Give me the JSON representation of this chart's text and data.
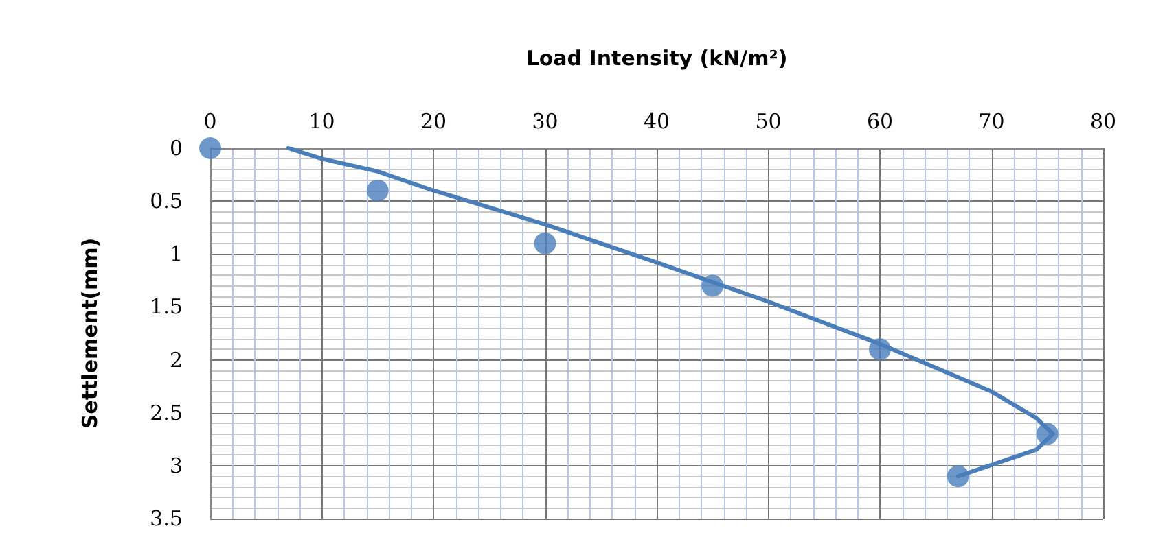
{
  "chart_data": {
    "type": "scatter",
    "xlabel": "Load Intensity (kN/m²)",
    "ylabel": "Settlement(mm)",
    "xlim": [
      0,
      80
    ],
    "xticks": [
      0,
      {
        "value": 2,
        "label": null
      },
      {
        "value": 4,
        "label": null
      },
      {
        "value": 6,
        "label": null
      },
      {
        "value": 8,
        "label": null
      },
      10,
      {
        "value": 12,
        "label": null
      },
      {
        "value": 14,
        "label": null
      },
      {
        "value": 16,
        "label": null
      },
      {
        "value": 18,
        "label": null
      },
      20,
      {
        "value": 22,
        "label": null
      },
      {
        "value": 24,
        "label": null
      },
      {
        "value": 26,
        "label": null
      },
      {
        "value": 28,
        "label": null
      },
      30,
      {
        "value": 32,
        "label": null
      },
      {
        "value": 34,
        "label": null
      },
      {
        "value": 36,
        "label": null
      },
      {
        "value": 38,
        "label": null
      },
      40,
      {
        "value": 42,
        "label": null
      },
      {
        "value": 44,
        "label": null
      },
      {
        "value": 46,
        "label": null
      },
      {
        "value": 48,
        "label": null
      },
      50,
      {
        "value": 52,
        "label": null
      },
      {
        "value": 54,
        "label": null
      },
      {
        "value": 56,
        "label": null
      },
      {
        "value": 58,
        "label": null
      },
      60,
      {
        "value": 62,
        "label": null
      },
      {
        "value": 64,
        "label": null
      },
      {
        "value": 66,
        "label": null
      },
      {
        "value": 68,
        "label": null
      },
      70,
      {
        "value": 72,
        "label": null
      },
      {
        "value": 74,
        "label": null
      },
      {
        "value": 76,
        "label": null
      },
      {
        "value": 78,
        "label": null
      },
      80
    ],
    "ylim": [
      3.5,
      0
    ],
    "yticks": [
      0,
      {
        "value": 0.1,
        "label": null
      },
      {
        "value": 0.2,
        "label": null
      },
      {
        "value": 0.3,
        "label": null
      },
      {
        "value": 0.4,
        "label": null
      },
      0.5,
      {
        "value": 0.6,
        "label": null
      },
      {
        "value": 0.7,
        "label": null
      },
      {
        "value": 0.8,
        "label": null
      },
      {
        "value": 0.9,
        "label": null
      },
      1,
      {
        "value": 1.1,
        "label": null
      },
      {
        "value": 1.2,
        "label": null
      },
      {
        "value": 1.3,
        "label": null
      },
      {
        "value": 1.4,
        "label": null
      },
      1.5,
      {
        "value": 1.6,
        "label": null
      },
      {
        "value": 1.7,
        "label": null
      },
      {
        "value": 1.8,
        "label": null
      },
      {
        "value": 1.9,
        "label": null
      },
      2,
      {
        "value": 2.1,
        "label": null
      },
      {
        "value": 2.2,
        "label": null
      },
      {
        "value": 2.3,
        "label": null
      },
      {
        "value": 2.4,
        "label": null
      },
      2.5,
      {
        "value": 2.6,
        "label": null
      },
      {
        "value": 2.7,
        "label": null
      },
      {
        "value": 2.8,
        "label": null
      },
      {
        "value": 2.9,
        "label": null
      },
      3,
      {
        "value": 3.1,
        "label": null
      },
      {
        "value": 3.2,
        "label": null
      },
      {
        "value": 3.3,
        "label": null
      },
      {
        "value": 3.4,
        "label": null
      },
      3.5
    ],
    "grid": true,
    "series": [
      {
        "color": "#4a7ebb",
        "marker": "circle",
        "x": [
          0,
          15,
          30,
          45,
          60,
          75,
          67
        ],
        "values": [
          0,
          0.4,
          0.9,
          1.3,
          1.9,
          2.7,
          3.1
        ]
      },
      {
        "type": "line",
        "color": "#4a7ebb",
        "marker": "none",
        "line_style": "solid",
        "x": [
          7,
          10,
          15,
          20,
          30,
          40,
          50,
          60,
          70,
          74,
          75.5,
          74,
          67
        ],
        "values": [
          0,
          0.1,
          0.22,
          0.4,
          0.72,
          1.08,
          1.45,
          1.85,
          2.3,
          2.55,
          2.7,
          2.85,
          3.1
        ]
      }
    ]
  }
}
